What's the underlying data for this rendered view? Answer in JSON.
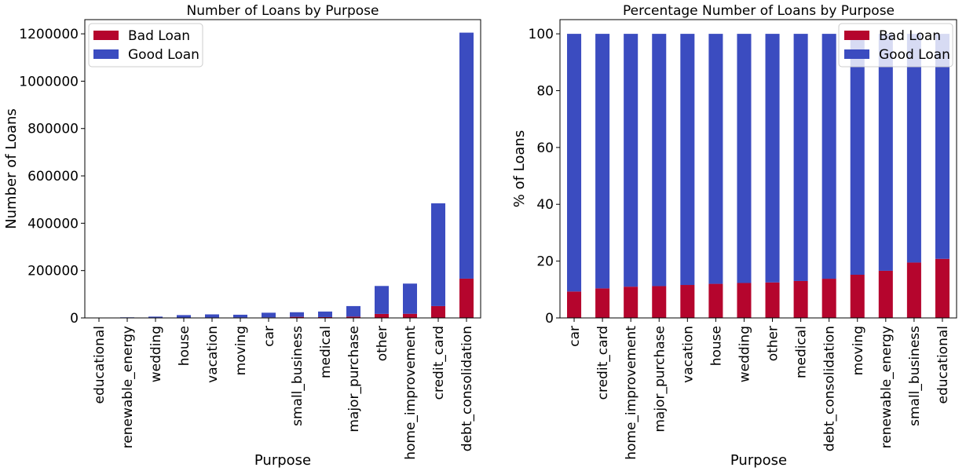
{
  "colors": {
    "bad": "#b5052d",
    "good": "#3b4cc0"
  },
  "chart_data": [
    {
      "type": "bar",
      "stacked": true,
      "title": "Number of Loans by Purpose",
      "xlabel": "Purpose",
      "ylabel": "Number of Loans",
      "ylim": [
        0,
        1260000
      ],
      "yticks": [
        "0",
        "200000",
        "400000",
        "600000",
        "800000",
        "1000000",
        "1200000"
      ],
      "legend_position": "upper-left",
      "categories": [
        "educational",
        "renewable_energy",
        "wedding",
        "house",
        "vacation",
        "moving",
        "car",
        "small_business",
        "medical",
        "major_purchase",
        "other",
        "home_improvement",
        "credit_card",
        "debt_consolidation"
      ],
      "series": [
        {
          "name": "Bad Loan",
          "values": [
            80,
            400,
            800,
            1600,
            1800,
            2000,
            2200,
            4500,
            3500,
            5500,
            17000,
            17500,
            50000,
            166000
          ]
        },
        {
          "name": "Good Loan",
          "values": [
            320,
            2100,
            4700,
            10400,
            13200,
            11500,
            19800,
            19500,
            23500,
            44500,
            118000,
            127500,
            434000,
            1039000
          ]
        }
      ]
    },
    {
      "type": "bar",
      "stacked": true,
      "title": "Percentage Number of Loans by Purpose",
      "xlabel": "Purpose",
      "ylabel": "% of Loans",
      "ylim": [
        0,
        105
      ],
      "yticks": [
        "0",
        "20",
        "40",
        "60",
        "80",
        "100"
      ],
      "legend_position": "upper-right",
      "categories": [
        "car",
        "credit_card",
        "home_improvement",
        "major_purchase",
        "vacation",
        "house",
        "wedding",
        "other",
        "medical",
        "debt_consolidation",
        "moving",
        "renewable_energy",
        "small_business",
        "educational"
      ],
      "series": [
        {
          "name": "Bad Loan",
          "values": [
            9.3,
            10.4,
            11.0,
            11.2,
            11.6,
            12.0,
            12.3,
            12.5,
            13.0,
            13.8,
            15.2,
            16.6,
            19.5,
            20.8
          ]
        },
        {
          "name": "Good Loan",
          "values": [
            90.7,
            89.6,
            89.0,
            88.8,
            88.4,
            88.0,
            87.7,
            87.5,
            87.0,
            86.2,
            84.8,
            83.4,
            80.5,
            79.2
          ]
        }
      ]
    }
  ]
}
